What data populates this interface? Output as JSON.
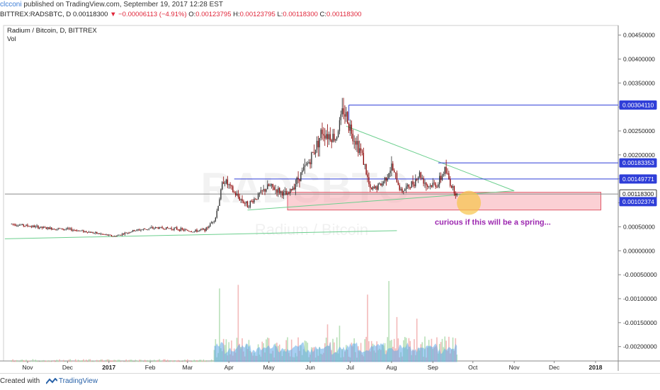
{
  "header": {
    "user": "clcconi",
    "published": "published on TradingView.com, September 19, 2017 12:28 EST",
    "symbol": "BITTREX:RADSBTC, D",
    "last": "0.00118300",
    "arrow": "▼",
    "change": "−0.00006113 (−4.91%)",
    "ohlc": [
      {
        "k": "O:",
        "v": "0.00123795"
      },
      {
        "k": "H:",
        "v": "0.00123795"
      },
      {
        "k": "L:",
        "v": "0.00118300"
      },
      {
        "k": "C:",
        "v": "0.00118300"
      }
    ]
  },
  "pane": {
    "title": "Radium / Bitcoin, D, BITTREX",
    "vol_label": "Vol",
    "watermark_symbol": "RADSBTC",
    "watermark_name": "Radium / Bitcoin",
    "annotation": "curious if this will be a spring..."
  },
  "colors": {
    "up": "#2f2f2f",
    "down": "#8b0000",
    "hline": "#2f3ed8",
    "trend": "#6ccf8e",
    "zone_fill": "#f7a9b0",
    "zone_stroke": "#e05a6a",
    "circle": "#f7c44a",
    "annotation": "#9c27b0",
    "vol_area": "#5fa8e8",
    "vol_up": "#a8d8a8",
    "vol_down": "#f0a8a8"
  },
  "chart_data": {
    "type": "candlestick",
    "title": "Radium / Bitcoin, D, BITTREX",
    "y_axis_ticks": [
      "0.00450000",
      "0.00400000",
      "0.00350000",
      "0.00300000",
      "0.00250000",
      "0.00200000",
      "0.00150000",
      "0.00100000",
      "0.00050000",
      "0.00000000",
      "-0.00050000",
      "-0.00100000",
      "-0.00150000",
      "-0.00200000"
    ],
    "x_axis_ticks": [
      "Nov",
      "Dec",
      "2017",
      "Feb",
      "Mar",
      "Apr",
      "May",
      "Jun",
      "Jul",
      "Aug",
      "Sep",
      "Oct",
      "Nov",
      "Dec",
      "2018"
    ],
    "y_range": [
      -0.0023,
      0.0047
    ],
    "price_labels": [
      {
        "value": "0.00304110",
        "numeric": 0.0030411,
        "style": "hline"
      },
      {
        "value": "0.00183353",
        "numeric": 0.00183353,
        "style": "hline"
      },
      {
        "value": "0.00149771",
        "numeric": 0.00149771,
        "style": "hline"
      },
      {
        "value": "0.00118300",
        "numeric": 0.001183,
        "style": "last"
      },
      {
        "value": "0.00102374",
        "numeric": 0.00102374,
        "style": "hline"
      }
    ],
    "price_path": [
      {
        "date": "2016-10-20",
        "close": 0.00056
      },
      {
        "date": "2016-11-01",
        "close": 0.00052
      },
      {
        "date": "2016-11-15",
        "close": 0.00047
      },
      {
        "date": "2016-12-01",
        "close": 0.00045
      },
      {
        "date": "2016-12-15",
        "close": 0.0004
      },
      {
        "date": "2017-01-05",
        "close": 0.0003
      },
      {
        "date": "2017-01-20",
        "close": 0.00042
      },
      {
        "date": "2017-02-05",
        "close": 0.00048
      },
      {
        "date": "2017-02-20",
        "close": 0.00046
      },
      {
        "date": "2017-03-05",
        "close": 0.0004
      },
      {
        "date": "2017-03-15",
        "close": 0.00045
      },
      {
        "date": "2017-03-22",
        "close": 0.0007
      },
      {
        "date": "2017-03-28",
        "close": 0.0015
      },
      {
        "date": "2017-04-05",
        "close": 0.0012
      },
      {
        "date": "2017-04-15",
        "close": 0.00095
      },
      {
        "date": "2017-05-01",
        "close": 0.00135
      },
      {
        "date": "2017-05-15",
        "close": 0.00115
      },
      {
        "date": "2017-05-25",
        "close": 0.0016
      },
      {
        "date": "2017-06-01",
        "close": 0.0019
      },
      {
        "date": "2017-06-10",
        "close": 0.0025
      },
      {
        "date": "2017-06-20",
        "close": 0.00235
      },
      {
        "date": "2017-06-26",
        "close": 0.00295
      },
      {
        "date": "2017-07-02",
        "close": 0.0025
      },
      {
        "date": "2017-07-10",
        "close": 0.002
      },
      {
        "date": "2017-07-16",
        "close": 0.00125
      },
      {
        "date": "2017-07-25",
        "close": 0.0014
      },
      {
        "date": "2017-08-01",
        "close": 0.00175
      },
      {
        "date": "2017-08-08",
        "close": 0.00125
      },
      {
        "date": "2017-08-15",
        "close": 0.00135
      },
      {
        "date": "2017-08-22",
        "close": 0.0016
      },
      {
        "date": "2017-08-28",
        "close": 0.00135
      },
      {
        "date": "2017-09-05",
        "close": 0.0014
      },
      {
        "date": "2017-09-10",
        "close": 0.0017
      },
      {
        "date": "2017-09-15",
        "close": 0.00135
      },
      {
        "date": "2017-09-19",
        "close": 0.00118
      }
    ],
    "horizontal_lines": [
      {
        "from": "2017-06-30",
        "value": 0.0030411
      },
      {
        "from": "2017-09-05",
        "value": 0.00183353
      },
      {
        "from": "2017-04-05",
        "value": 0.00149771
      },
      {
        "from": "2016-10-15",
        "value": 0.001183
      }
    ],
    "support_zone": {
      "from": "2017-05-15",
      "to": "2018-01-05",
      "top": 0.00122,
      "bottom": 0.00085
    },
    "trendlines": [
      {
        "from": [
          "2017-06-28",
          0.0026
        ],
        "to": [
          "2017-11-01",
          0.00125
        ]
      },
      {
        "from": [
          "2017-04-15",
          0.00085
        ],
        "to": [
          "2017-11-01",
          0.00125
        ]
      },
      {
        "from": [
          "2016-10-15",
          0.00025
        ],
        "to": [
          "2017-08-05",
          0.00042
        ]
      }
    ],
    "highlight_circle": {
      "date": "2017-09-28",
      "value": 0.001
    },
    "volume_profile_note": "volume histogram shown in lower pane from Mar to Sep 2017"
  }
}
